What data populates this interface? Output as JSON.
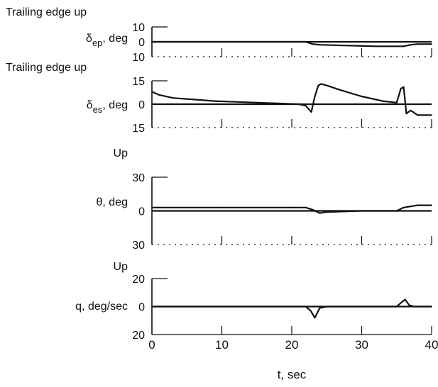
{
  "chart_data": [
    {
      "type": "line",
      "left_label_1": "Trailing edge up",
      "ylabel": "δep, deg",
      "ylabel_sym": "δ",
      "ylabel_sub": "ep",
      "ylabel_unit": ", deg",
      "ytick_labels": [
        "10",
        "0",
        "10"
      ],
      "yticks": [
        10,
        0,
        -10
      ],
      "ylim": [
        -10,
        10
      ],
      "x": [
        0,
        4,
        8,
        12,
        16,
        20,
        22,
        23,
        24,
        28,
        32,
        35,
        36,
        37,
        38,
        40
      ],
      "y": [
        0,
        0,
        0,
        0,
        0,
        0,
        0,
        -1.5,
        -2,
        -2.5,
        -3,
        -3,
        -3,
        -2,
        -1.5,
        -1.5
      ]
    },
    {
      "type": "line",
      "left_label_1": "Trailing edge up",
      "ylabel": "δes, deg",
      "ylabel_sym": "δ",
      "ylabel_sub": "es",
      "ylabel_unit": ", deg",
      "ytick_labels": [
        "15",
        "0",
        "15"
      ],
      "yticks": [
        15,
        0,
        -15
      ],
      "ylim": [
        -15,
        15
      ],
      "x": [
        0,
        1,
        3,
        6,
        9,
        12,
        15,
        18,
        21,
        22,
        22.8,
        23.3,
        23.8,
        24.2,
        25,
        27,
        30,
        33,
        35,
        35.6,
        36,
        36.4,
        37,
        38,
        40
      ],
      "y": [
        8,
        6,
        4,
        3,
        2,
        1.5,
        1,
        0.5,
        0,
        -1,
        -5,
        5,
        12,
        13,
        12,
        9,
        5,
        2,
        1,
        10,
        11,
        -6,
        -4,
        -7,
        -7
      ]
    },
    {
      "type": "line",
      "left_label_1": "Up",
      "ylabel": "θ, deg",
      "ytick_labels": [
        "30",
        "0",
        "30"
      ],
      "yticks": [
        30,
        0,
        -30
      ],
      "ylim": [
        -30,
        30
      ],
      "x": [
        0,
        10,
        20,
        22,
        23,
        24,
        25,
        30,
        35,
        36,
        37,
        38,
        40
      ],
      "y": [
        3,
        3,
        3,
        3,
        1,
        -2,
        -1,
        0,
        0,
        3,
        4,
        5,
        5
      ]
    },
    {
      "type": "line",
      "left_label_1": "Up",
      "ylabel": "q, deg/sec",
      "ytick_labels": [
        "20",
        "0",
        "20"
      ],
      "yticks": [
        20,
        0,
        -20
      ],
      "ylim": [
        -20,
        20
      ],
      "x": [
        0,
        22,
        22.7,
        23.3,
        24,
        25,
        35,
        35.7,
        36.2,
        36.8,
        37.5,
        40
      ],
      "y": [
        0,
        0,
        -3,
        -8,
        -1,
        0,
        0,
        3,
        5,
        1,
        0,
        0
      ],
      "xticks": [
        0,
        10,
        20,
        30,
        40
      ],
      "xtick_labels": [
        "0",
        "10",
        "20",
        "30",
        "40"
      ],
      "xlabel": "t, sec",
      "xlim": [
        0,
        40
      ]
    }
  ]
}
